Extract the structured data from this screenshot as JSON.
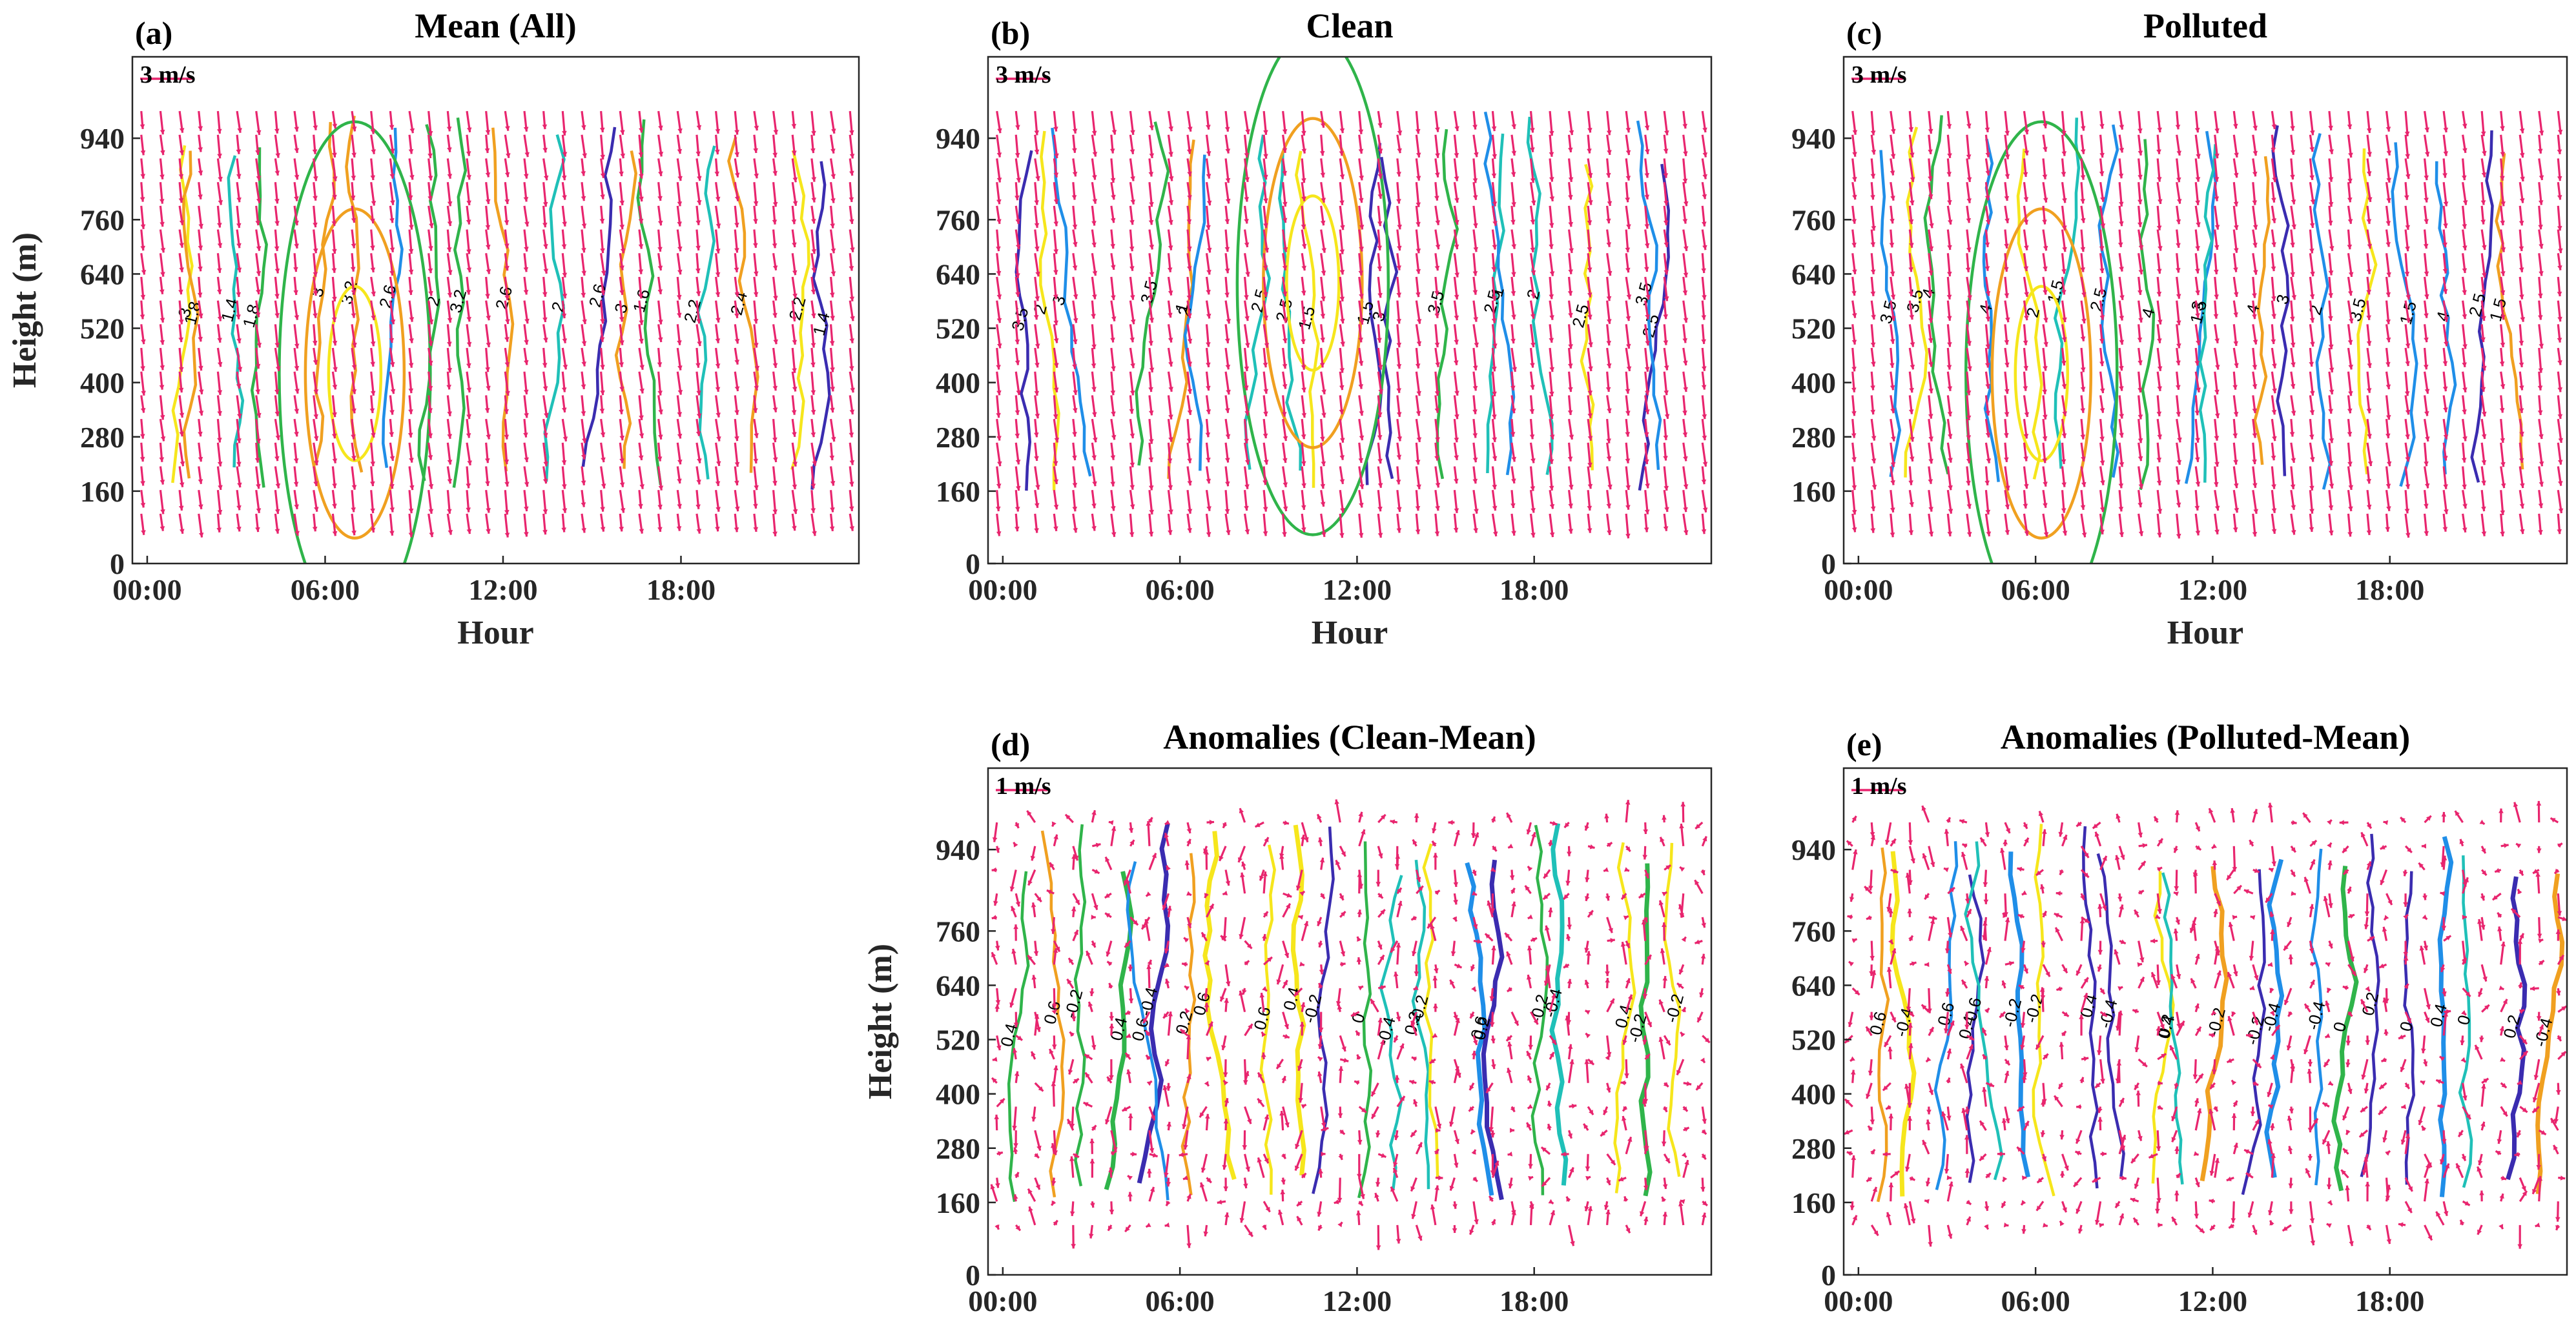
{
  "colors": {
    "vector": "#e8256e",
    "contour_levels": {
      "low": "#3a2cb0",
      "mid_low": "#1f8ee8",
      "mid": "#1fc0b8",
      "mid_high": "#2fb44a",
      "high": "#f0a020",
      "top": "#f6e61c"
    }
  },
  "chart_data": [
    {
      "id": "a",
      "type": "contour+quiver",
      "panel_letter": "(a)",
      "title": "Mean (All)",
      "xlabel": "Hour",
      "ylabel": "Height (m)",
      "xticks": [
        "00:00",
        "06:00",
        "12:00",
        "18:00"
      ],
      "xtick_values": [
        0,
        6,
        12,
        18
      ],
      "yticks": [
        "0",
        "160",
        "280",
        "400",
        "520",
        "640",
        "760",
        "940"
      ],
      "ytick_values": [
        0,
        160,
        280,
        400,
        520,
        640,
        760,
        940
      ],
      "xlim": [
        -0.5,
        24
      ],
      "ylim": [
        0,
        1120
      ],
      "vector_scale_label": "3 m/s",
      "contour_levels": [
        1.4,
        1.6,
        1.8,
        2,
        2.2,
        2.4,
        2.6,
        2.8,
        3,
        3.2
      ],
      "contour_labels": [
        "1.4",
        "1.6",
        "1.8",
        "2",
        "2.2",
        "2.4",
        "2.6",
        "2.8",
        "3",
        "3.2"
      ],
      "wind_direction": "southward (from north-northeast)"
    },
    {
      "id": "b",
      "type": "contour+quiver",
      "panel_letter": "(b)",
      "title": "Clean",
      "xlabel": "Hour",
      "ylabel": "",
      "xticks": [
        "00:00",
        "06:00",
        "12:00",
        "18:00"
      ],
      "xtick_values": [
        0,
        6,
        12,
        18
      ],
      "yticks": [
        "0",
        "160",
        "280",
        "400",
        "520",
        "640",
        "760",
        "940"
      ],
      "ytick_values": [
        0,
        160,
        280,
        400,
        520,
        640,
        760,
        940
      ],
      "xlim": [
        -0.5,
        24
      ],
      "ylim": [
        0,
        1120
      ],
      "vector_scale_label": "3 m/s",
      "contour_levels": [
        1,
        1.5,
        2,
        2.5,
        3,
        3.5
      ],
      "contour_labels": [
        "1",
        "1.5",
        "2",
        "2.5",
        "3",
        "3.5"
      ],
      "wind_direction": "southward (from north-northeast)"
    },
    {
      "id": "c",
      "type": "contour+quiver",
      "panel_letter": "(c)",
      "title": "Polluted",
      "xlabel": "Hour",
      "ylabel": "",
      "xticks": [
        "00:00",
        "06:00",
        "12:00",
        "18:00"
      ],
      "xtick_values": [
        0,
        6,
        12,
        18
      ],
      "yticks": [
        "0",
        "160",
        "280",
        "400",
        "520",
        "640",
        "760",
        "940"
      ],
      "ytick_values": [
        0,
        160,
        280,
        400,
        520,
        640,
        760,
        940
      ],
      "xlim": [
        -0.5,
        24
      ],
      "ylim": [
        0,
        1120
      ],
      "vector_scale_label": "3 m/s",
      "contour_levels": [
        1,
        1.5,
        2,
        2.5,
        3,
        3.5,
        4
      ],
      "contour_labels": [
        "1",
        "1.5",
        "2",
        "2.5",
        "3",
        "3.5",
        "4"
      ],
      "wind_direction": "southward (from north-northeast)"
    },
    {
      "id": "d",
      "type": "contour+quiver",
      "panel_letter": "(d)",
      "title": "Anomalies (Clean-Mean)",
      "xlabel": "Hour",
      "ylabel": "Height (m)",
      "xticks": [
        "00:00",
        "06:00",
        "12:00",
        "18:00"
      ],
      "xtick_values": [
        0,
        6,
        12,
        18
      ],
      "yticks": [
        "0",
        "160",
        "280",
        "400",
        "520",
        "640",
        "760",
        "940"
      ],
      "ytick_values": [
        0,
        160,
        280,
        400,
        520,
        640,
        760,
        940
      ],
      "xlim": [
        -0.5,
        24
      ],
      "ylim": [
        0,
        1120
      ],
      "vector_scale_label": "1 m/s",
      "contour_levels": [
        -0.4,
        -0.2,
        0,
        0.2,
        0.4,
        0.6
      ],
      "contour_labels": [
        "-0.4",
        "-0.2",
        "0",
        "0.2",
        "0.4",
        "0.6"
      ],
      "wind_direction": "variable anomaly vectors"
    },
    {
      "id": "e",
      "type": "contour+quiver",
      "panel_letter": "(e)",
      "title": "Anomalies (Polluted-Mean)",
      "xlabel": "Hour",
      "ylabel": "",
      "xticks": [
        "00:00",
        "06:00",
        "12:00",
        "18:00"
      ],
      "xtick_values": [
        0,
        6,
        12,
        18
      ],
      "yticks": [
        "0",
        "160",
        "280",
        "400",
        "520",
        "640",
        "760",
        "940"
      ],
      "ytick_values": [
        0,
        160,
        280,
        400,
        520,
        640,
        760,
        940
      ],
      "xlim": [
        -0.5,
        24
      ],
      "ylim": [
        0,
        1120
      ],
      "vector_scale_label": "1 m/s",
      "contour_levels": [
        -0.4,
        -0.2,
        0,
        0.2,
        0.4,
        0.6
      ],
      "contour_labels": [
        "-0.4",
        "-0.2",
        "0",
        "0.2",
        "0.4",
        "0.6"
      ],
      "wind_direction": "variable anomaly vectors"
    }
  ]
}
